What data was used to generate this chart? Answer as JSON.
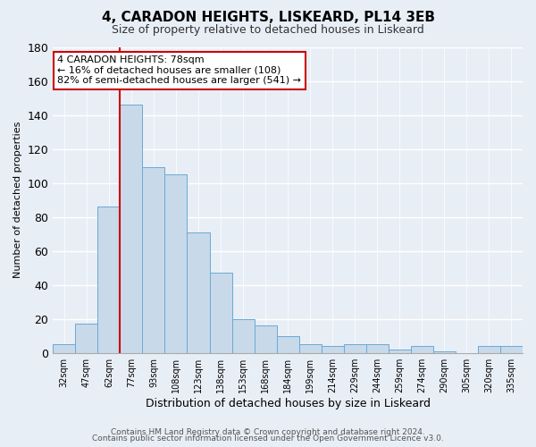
{
  "title": "4, CARADON HEIGHTS, LISKEARD, PL14 3EB",
  "subtitle": "Size of property relative to detached houses in Liskeard",
  "xlabel": "Distribution of detached houses by size in Liskeard",
  "ylabel": "Number of detached properties",
  "bin_labels": [
    "32sqm",
    "47sqm",
    "62sqm",
    "77sqm",
    "93sqm",
    "108sqm",
    "123sqm",
    "138sqm",
    "153sqm",
    "168sqm",
    "184sqm",
    "199sqm",
    "214sqm",
    "229sqm",
    "244sqm",
    "259sqm",
    "274sqm",
    "290sqm",
    "305sqm",
    "320sqm",
    "335sqm"
  ],
  "bar_heights": [
    5,
    17,
    86,
    146,
    109,
    105,
    71,
    47,
    20,
    16,
    10,
    5,
    4,
    5,
    5,
    2,
    4,
    1,
    0,
    4,
    4
  ],
  "bar_color": "#c8d9ea",
  "bar_edge_color": "#6aaad4",
  "vline_x": 3,
  "vline_color": "#cc0000",
  "ylim": [
    0,
    180
  ],
  "yticks": [
    0,
    20,
    40,
    60,
    80,
    100,
    120,
    140,
    160,
    180
  ],
  "annotation_title": "4 CARADON HEIGHTS: 78sqm",
  "annotation_line1": "← 16% of detached houses are smaller (108)",
  "annotation_line2": "82% of semi-detached houses are larger (541) →",
  "annotation_box_facecolor": "#ffffff",
  "annotation_box_edgecolor": "#cc0000",
  "footer_line1": "Contains HM Land Registry data © Crown copyright and database right 2024.",
  "footer_line2": "Contains public sector information licensed under the Open Government Licence v3.0.",
  "bg_color": "#e8eef6",
  "grid_color": "#ffffff",
  "title_fontsize": 11,
  "subtitle_fontsize": 9,
  "ylabel_fontsize": 8,
  "xlabel_fontsize": 9,
  "tick_fontsize": 7,
  "ann_fontsize": 8,
  "footer_fontsize": 6.5
}
